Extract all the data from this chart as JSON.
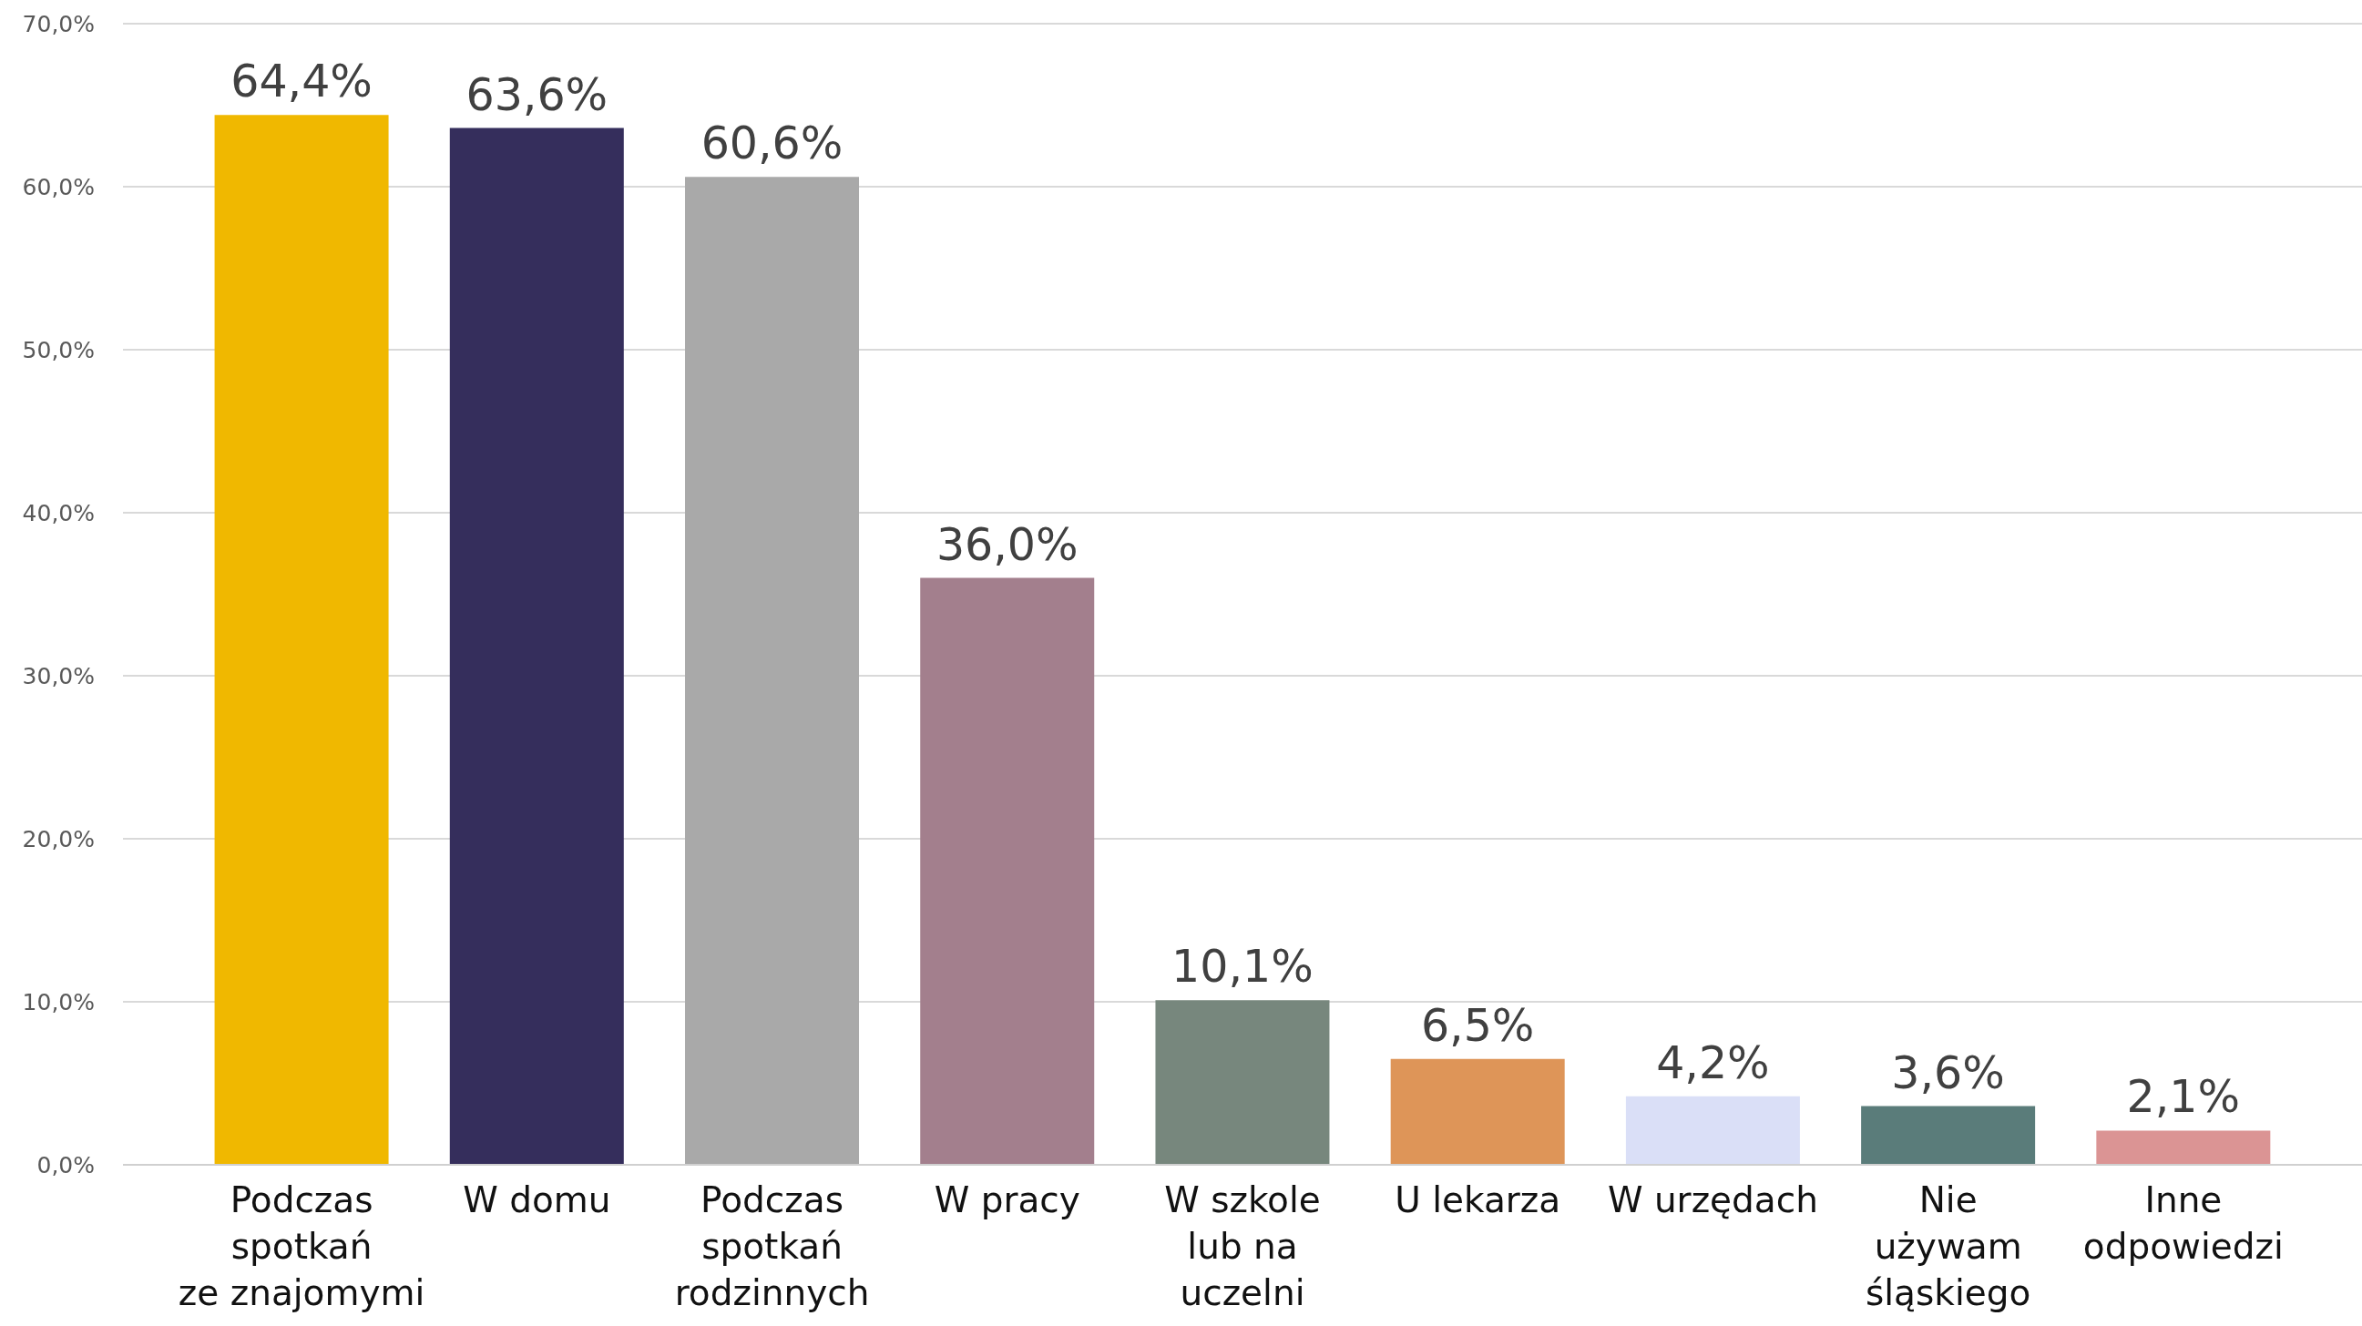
{
  "chart_data": {
    "type": "bar",
    "categories": [
      "Podczas\nspotkań\nze znajomymi",
      "W domu",
      "Podczas\nspotkań\nrodzinnych",
      "W pracy",
      "W szkole\nlub na\nuczelni",
      "U lekarza",
      "W urzędach",
      "Nie\nużywam\nśląskiego",
      "Inne\nodpowiedzi"
    ],
    "values": [
      64.4,
      63.6,
      60.6,
      36.0,
      10.1,
      6.5,
      4.2,
      3.6,
      2.1
    ],
    "colors": [
      "#f0b800",
      "#352e5c",
      "#a9a9a9",
      "#a37f8d",
      "#77877d",
      "#de9558",
      "#dadff7",
      "#5a7c7a",
      "#db9494"
    ],
    "value_labels": [
      "64,4%",
      "63,6%",
      "60,6%",
      "36,0%",
      "10,1%",
      "6,5%",
      "4,2%",
      "3,6%",
      "2,1%"
    ],
    "ylim": [
      0,
      70
    ],
    "yticks": [
      {
        "value": 0,
        "label": "0,0%"
      },
      {
        "value": 10,
        "label": "10,0%"
      },
      {
        "value": 20,
        "label": "20,0%"
      },
      {
        "value": 30,
        "label": "30,0%"
      },
      {
        "value": 40,
        "label": "40,0%"
      },
      {
        "value": 50,
        "label": "50,0%"
      },
      {
        "value": 60,
        "label": "60,0%"
      },
      {
        "value": 70,
        "label": "70,0%"
      }
    ],
    "grid": "y"
  }
}
